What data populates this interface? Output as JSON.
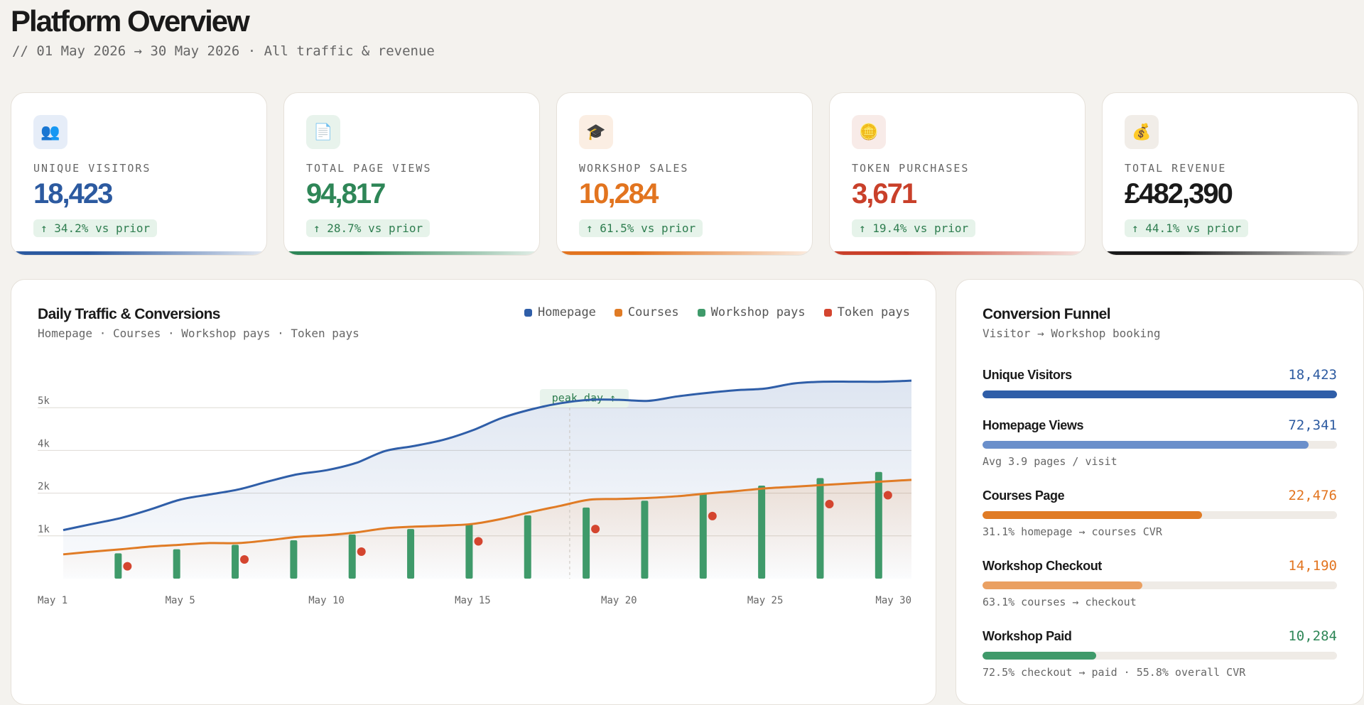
{
  "header": {
    "title": "Platform Overview",
    "subtitle": "// 01 May 2026 → 30 May 2026 · All traffic & revenue"
  },
  "kpis": [
    {
      "icon": "👥",
      "label": "UNIQUE VISITORS",
      "value": "18,423",
      "change": "↑ 34.2% vs prior",
      "color": "#2c5aa0",
      "icon_bg": "#e6edf8"
    },
    {
      "icon": "📄",
      "label": "TOTAL PAGE VIEWS",
      "value": "94,817",
      "change": "↑ 28.7% vs prior",
      "color": "#2e8657",
      "icon_bg": "#e8f3ec"
    },
    {
      "icon": "🎓",
      "label": "WORKSHOP SALES",
      "value": "10,284",
      "change": "↑ 61.5% vs prior",
      "color": "#e2741f",
      "icon_bg": "#fbeee3"
    },
    {
      "icon": "🪙",
      "label": "TOKEN PURCHASES",
      "value": "3,671",
      "change": "↑ 19.4% vs prior",
      "color": "#c9402a",
      "icon_bg": "#f8ebe8"
    },
    {
      "icon": "💰",
      "label": "TOTAL REVENUE",
      "value": "£482,390",
      "change": "↑ 44.1% vs prior",
      "color": "#1a1a1a",
      "icon_bg": "#f1ede8"
    }
  ],
  "chart_data": {
    "type": "combo",
    "title": "Daily Traffic & Conversions",
    "subtitle": "Homepage · Courses · Workshop pays · Token pays",
    "categories": [
      "May 1",
      null,
      null,
      null,
      "May 5",
      null,
      null,
      null,
      null,
      "May 10",
      null,
      null,
      null,
      null,
      "May 15",
      null,
      null,
      null,
      null,
      "May 20",
      null,
      null,
      null,
      null,
      "May 25",
      null,
      null,
      null,
      null,
      "May 30"
    ],
    "series": [
      {
        "name": "Homepage",
        "color": "#2f5ea8",
        "type": "area",
        "values": [
          1420,
          1600,
          1780,
          2030,
          2310,
          2460,
          2610,
          2840,
          3050,
          3170,
          3380,
          3730,
          3880,
          4060,
          4340,
          4700,
          4950,
          5130,
          5230,
          5230,
          5200,
          5330,
          5430,
          5510,
          5560,
          5710,
          5760,
          5760,
          5760,
          5790
        ]
      },
      {
        "name": "Courses",
        "color": "#e07b25",
        "type": "area",
        "values": [
          710,
          790,
          860,
          940,
          990,
          1040,
          1040,
          1120,
          1220,
          1270,
          1350,
          1470,
          1520,
          1550,
          1600,
          1750,
          1950,
          2130,
          2310,
          2330,
          2360,
          2410,
          2490,
          2560,
          2640,
          2690,
          2740,
          2790,
          2840,
          2890
        ]
      },
      {
        "name": "Workshop pays",
        "color": "#3f9a6a",
        "type": "bar",
        "values": [
          null,
          null,
          740,
          null,
          860,
          null,
          990,
          null,
          1120,
          null,
          1290,
          null,
          1450,
          null,
          1600,
          null,
          1850,
          null,
          2080,
          null,
          2280,
          null,
          2490,
          null,
          2720,
          null,
          2940,
          null,
          3120,
          null
        ]
      },
      {
        "name": "Token pays",
        "color": "#d4452f",
        "type": "scatter",
        "values": [
          null,
          null,
          360,
          null,
          null,
          null,
          560,
          null,
          null,
          null,
          790,
          null,
          null,
          null,
          1090,
          null,
          null,
          null,
          1450,
          null,
          null,
          null,
          1830,
          null,
          null,
          null,
          2180,
          null,
          2440,
          null
        ]
      }
    ],
    "ylim": [
      0,
      6250
    ],
    "yticks": [
      {
        "value": 1250,
        "label": "1k"
      },
      {
        "value": 2500,
        "label": "2k"
      },
      {
        "value": 3750,
        "label": "4k"
      },
      {
        "value": 5000,
        "label": "5k"
      }
    ],
    "grid": true,
    "annotation": "peak day ↑"
  },
  "funnel": {
    "title": "Conversion Funnel",
    "subtitle": "Visitor → Workshop booking",
    "stages": [
      {
        "name": "Unique Visitors",
        "value": "18,423",
        "fill": 100,
        "color": "#2c5aa0",
        "bar_color": "#2f5ea8"
      },
      {
        "name": "Homepage Views",
        "value": "72,341",
        "fill": 92,
        "color": "#2c5aa0",
        "bar_color": "#6a8fcb",
        "note": "Avg 3.9 pages / visit"
      },
      {
        "name": "Courses Page",
        "value": "22,476",
        "fill": 62,
        "color": "#e2741f",
        "bar_color": "#e07b25",
        "note": "31.1% homepage → courses CVR"
      },
      {
        "name": "Workshop Checkout",
        "value": "14,190",
        "fill": 45,
        "color": "#e2741f",
        "bar_color": "#eaa062",
        "note": "63.1% courses → checkout"
      },
      {
        "name": "Workshop Paid",
        "value": "10,284",
        "fill": 32,
        "color": "#2e8657",
        "bar_color": "#3f9a6a",
        "note": "72.5% checkout → paid · 55.8% overall CVR"
      }
    ]
  }
}
